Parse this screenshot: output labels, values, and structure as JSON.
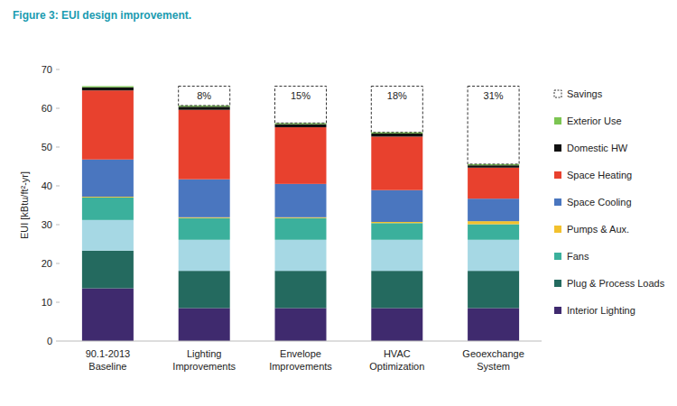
{
  "chart_data": {
    "type": "bar",
    "stacked": true,
    "title": "Figure 3: EUI design improvement.",
    "y_label": "EUI [kBtu/ft²-yr]",
    "categories": [
      "90.1-2013 Baseline",
      "Lighting Improvements",
      "Envelope Improvements",
      "HVAC Optimization",
      "Geoexchange System"
    ],
    "ylim": [
      0,
      70
    ],
    "yticks": [
      0,
      10,
      20,
      30,
      40,
      50,
      60,
      70
    ],
    "grid": false,
    "legend": "right",
    "series": [
      {
        "name": "Interior Lighting",
        "color": "#3f2a6e",
        "values": [
          13.6,
          8.5,
          8.5,
          8.5,
          8.5
        ]
      },
      {
        "name": "Plug & Process Loads",
        "color": "#246a5f",
        "values": [
          9.7,
          9.6,
          9.6,
          9.6,
          9.6
        ]
      },
      {
        "name": null,
        "color": "#a6d8e4",
        "values": [
          7.9,
          8.0,
          8.0,
          8.0,
          8.0
        ]
      },
      {
        "name": "Fans",
        "color": "#3bb09c",
        "values": [
          5.8,
          5.6,
          5.6,
          4.3,
          4.0
        ]
      },
      {
        "name": "Pumps & Aux.",
        "color": "#f2c12e",
        "values": [
          0.2,
          0.2,
          0.2,
          0.3,
          0.8
        ]
      },
      {
        "name": "Space Cooling",
        "color": "#4a76bf",
        "values": [
          9.6,
          9.8,
          8.6,
          8.2,
          5.8
        ]
      },
      {
        "name": "Space Heating",
        "color": "#e8412e",
        "values": [
          17.8,
          17.9,
          14.6,
          13.8,
          8.0
        ]
      },
      {
        "name": "Domestic HW",
        "color": "#111111",
        "values": [
          0.8,
          0.8,
          0.8,
          0.8,
          0.6
        ]
      },
      {
        "name": "Exterior Use",
        "color": "#7cc552",
        "values": [
          0.3,
          0.3,
          0.3,
          0.3,
          0.3
        ]
      }
    ],
    "savings": {
      "name": "Savings",
      "data_labels": true,
      "values": [
        null,
        8,
        15,
        18,
        31
      ],
      "value_labels": [
        null,
        "8%",
        "15%",
        "18%",
        "31%"
      ]
    }
  }
}
